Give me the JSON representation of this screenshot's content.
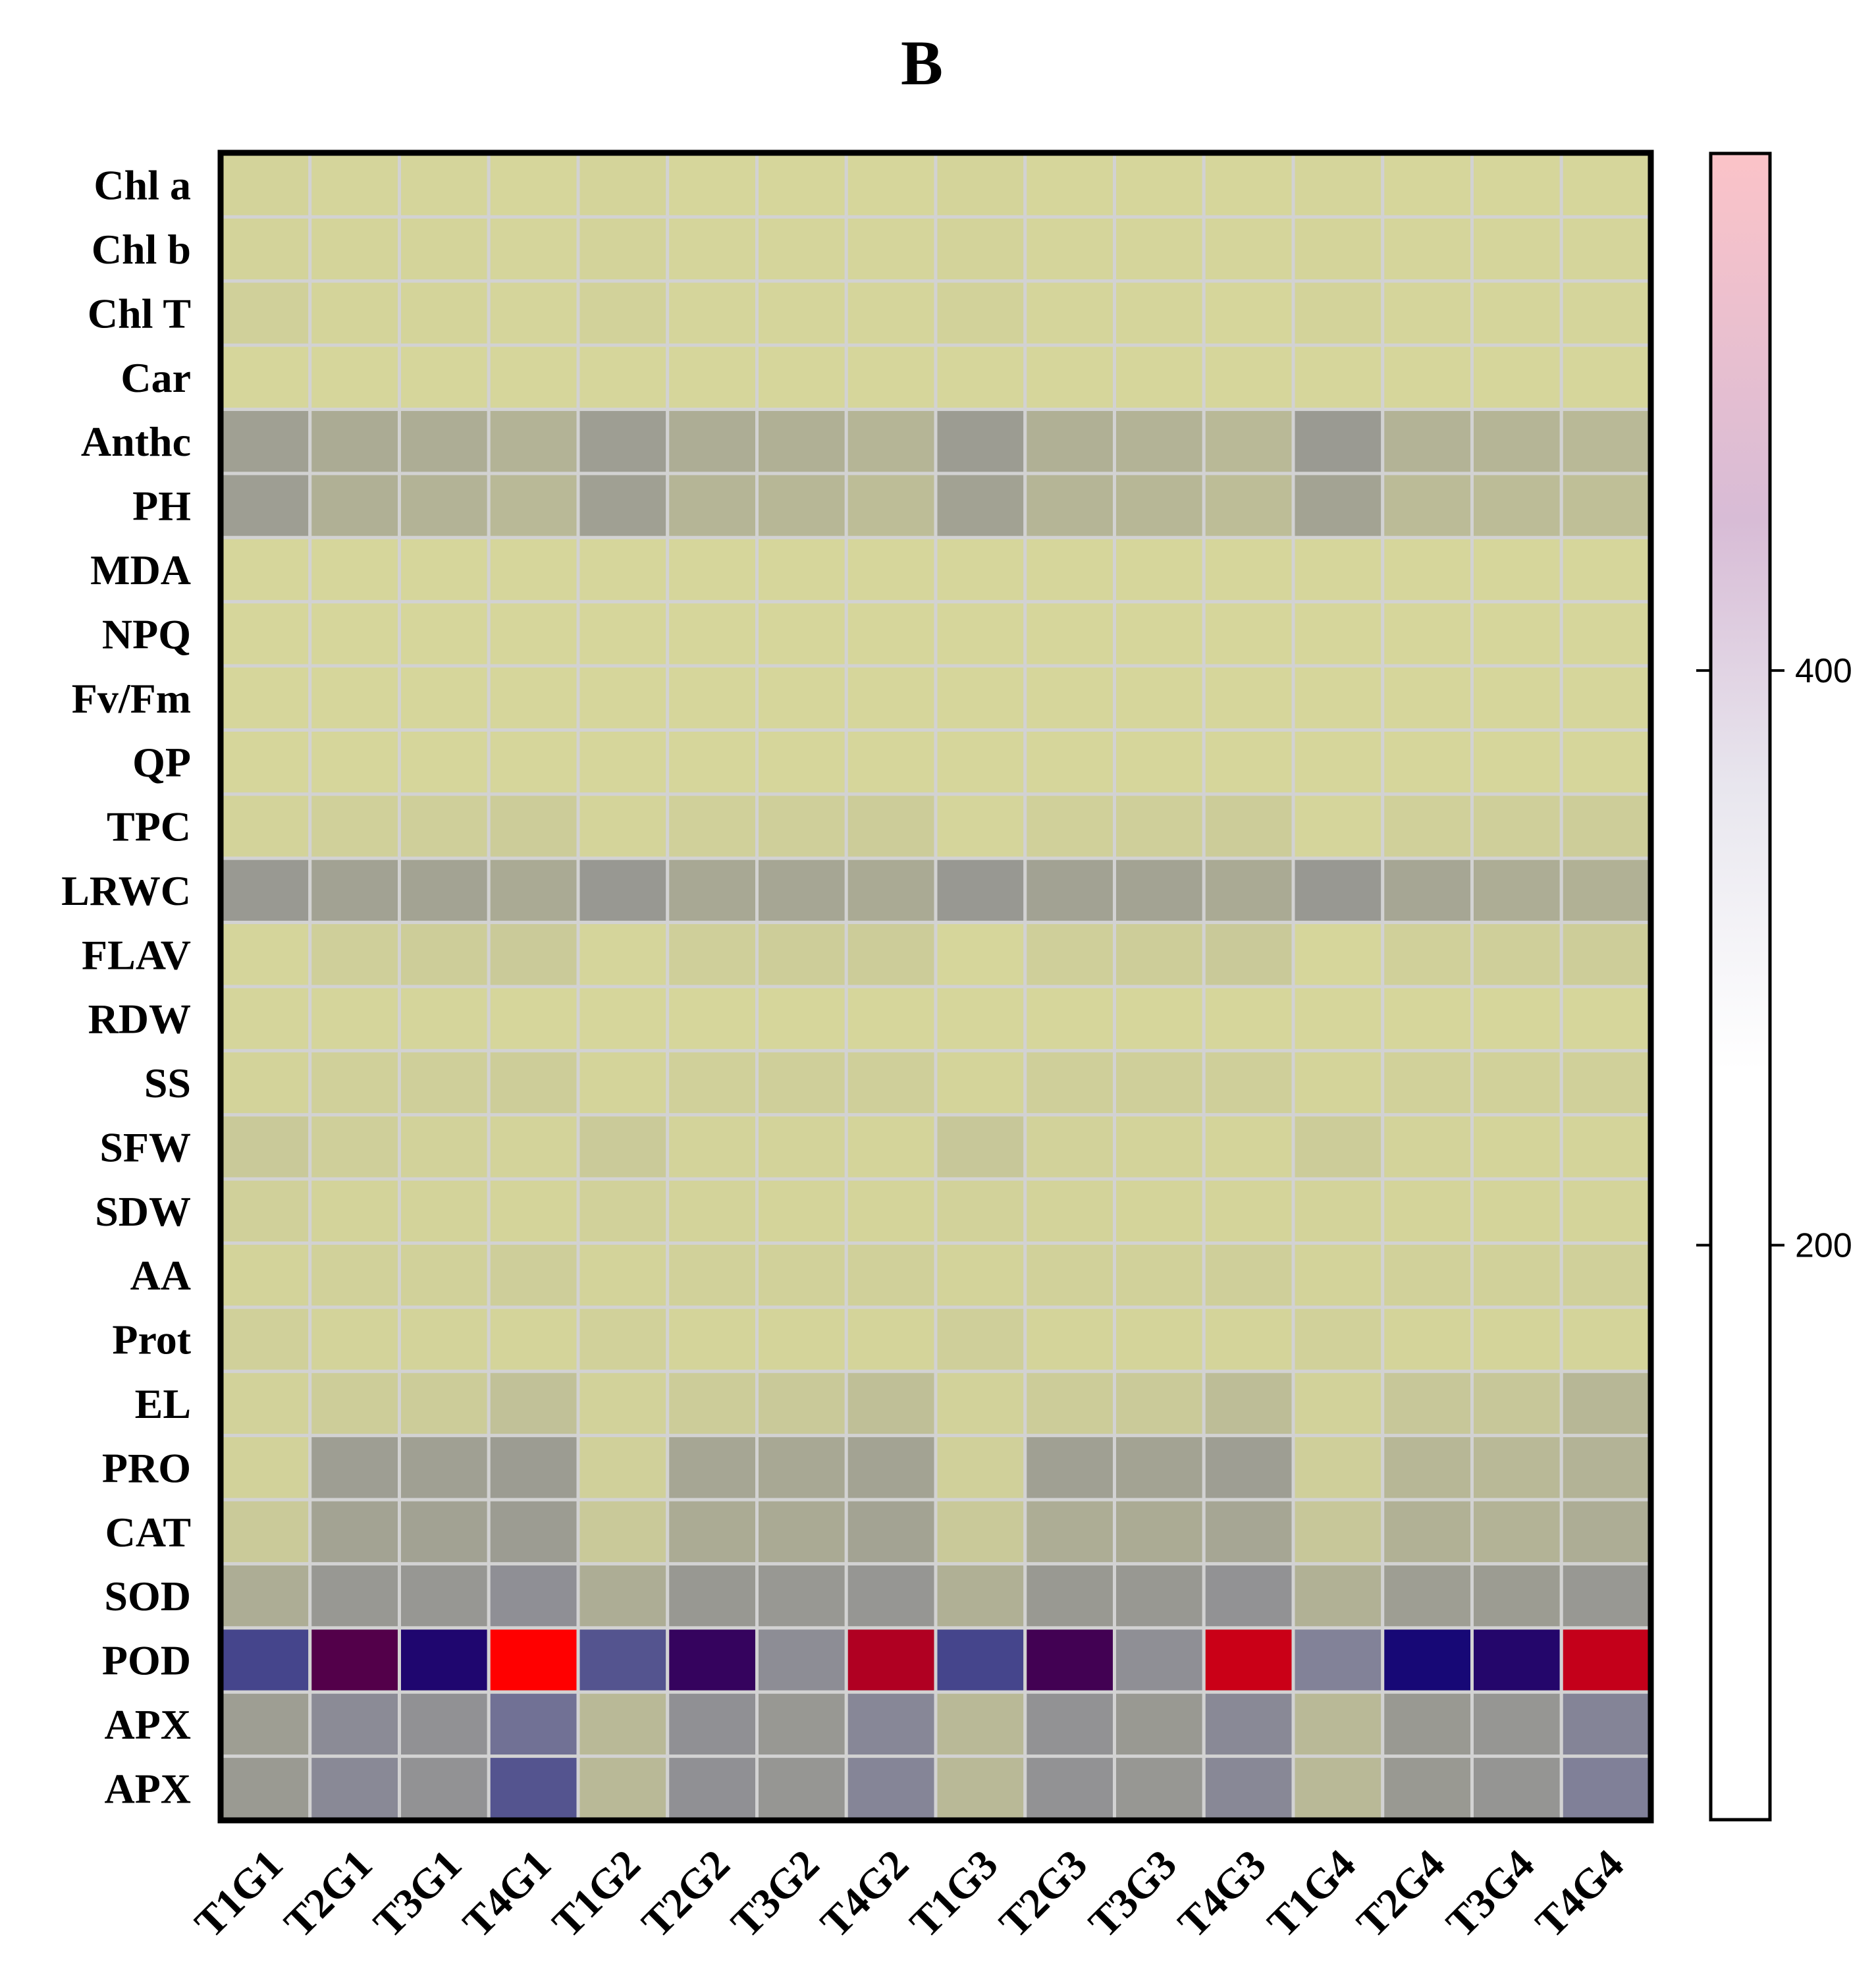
{
  "chart_data": {
    "type": "heatmap",
    "title": "B",
    "rows": [
      "Chl a",
      "Chl b",
      "Chl T",
      "Car",
      "Anthc",
      "PH",
      "MDA",
      "NPQ",
      "Fv/Fm",
      "QP",
      "TPC",
      "LRWC",
      "FLAV",
      "RDW",
      "SS",
      "SFW",
      "SDW",
      "AA",
      "Prot",
      "EL",
      "PRO",
      "CAT",
      "SOD",
      "POD",
      "APX",
      "APX"
    ],
    "columns": [
      "T1G1",
      "T2G1",
      "T3G1",
      "T4G1",
      "T1G2",
      "T2G2",
      "T3G2",
      "T4G2",
      "T1G3",
      "T2G3",
      "T3G3",
      "T4G3",
      "T1G4",
      "T2G4",
      "T3G4",
      "T4G4"
    ],
    "values": [
      [
        6,
        4,
        4,
        3,
        5,
        3,
        3,
        3,
        5,
        3,
        3,
        3,
        4,
        3,
        3,
        3
      ],
      [
        7,
        5,
        5,
        4,
        6,
        4,
        4,
        4,
        6,
        4,
        4,
        4,
        5,
        4,
        4,
        4
      ],
      [
        10,
        5,
        5,
        4,
        8,
        4,
        4,
        4,
        8,
        4,
        4,
        3,
        7,
        4,
        4,
        4
      ],
      [
        3,
        2,
        2,
        2,
        2,
        2,
        2,
        2,
        2,
        2,
        2,
        2,
        2,
        2,
        2,
        2
      ],
      [
        72,
        58,
        56,
        48,
        75,
        55,
        52,
        45,
        78,
        52,
        48,
        40,
        80,
        48,
        45,
        40
      ],
      [
        75,
        52,
        48,
        40,
        72,
        45,
        42,
        35,
        70,
        45,
        42,
        35,
        68,
        38,
        36,
        32
      ],
      [
        2,
        2,
        2,
        2,
        2,
        2,
        2,
        2,
        2,
        2,
        2,
        2,
        2,
        2,
        2,
        2
      ],
      [
        2,
        2,
        2,
        2,
        2,
        2,
        2,
        2,
        2,
        2,
        2,
        2,
        2,
        2,
        2,
        2
      ],
      [
        3,
        3,
        3,
        3,
        3,
        3,
        3,
        3,
        3,
        3,
        3,
        3,
        3,
        3,
        3,
        3
      ],
      [
        3,
        3,
        3,
        3,
        3,
        3,
        3,
        3,
        3,
        3,
        3,
        3,
        3,
        3,
        3,
        3
      ],
      [
        6,
        10,
        12,
        16,
        5,
        10,
        12,
        15,
        4,
        10,
        12,
        15,
        4,
        10,
        12,
        14
      ],
      [
        85,
        70,
        68,
        60,
        88,
        62,
        65,
        60,
        88,
        70,
        68,
        60,
        88,
        65,
        55,
        50
      ],
      [
        4,
        12,
        14,
        18,
        4,
        12,
        14,
        16,
        3,
        12,
        14,
        20,
        3,
        10,
        11,
        14
      ],
      [
        4,
        4,
        4,
        3,
        3,
        3,
        3,
        3,
        3,
        3,
        3,
        3,
        3,
        3,
        3,
        3
      ],
      [
        6,
        10,
        12,
        14,
        5,
        10,
        11,
        12,
        5,
        11,
        11,
        11,
        5,
        9,
        9,
        10
      ],
      [
        20,
        12,
        8,
        6,
        18,
        7,
        6,
        5,
        22,
        8,
        6,
        5,
        15,
        6,
        5,
        5
      ],
      [
        10,
        7,
        6,
        5,
        9,
        6,
        5,
        5,
        8,
        6,
        5,
        5,
        7,
        5,
        5,
        5
      ],
      [
        6,
        9,
        9,
        13,
        6,
        9,
        9,
        10,
        6,
        9,
        9,
        12,
        6,
        9,
        9,
        10
      ],
      [
        10,
        6,
        6,
        5,
        9,
        5,
        5,
        5,
        12,
        5,
        5,
        5,
        9,
        5,
        5,
        5
      ],
      [
        8,
        14,
        15,
        30,
        8,
        16,
        20,
        32,
        8,
        15,
        18,
        35,
        8,
        22,
        22,
        42
      ],
      [
        8,
        75,
        72,
        78,
        10,
        65,
        62,
        68,
        10,
        72,
        68,
        75,
        12,
        42,
        40,
        48
      ],
      [
        18,
        68,
        70,
        78,
        20,
        58,
        60,
        68,
        20,
        55,
        58,
        65,
        22,
        50,
        48,
        55
      ],
      [
        55,
        90,
        92,
        130,
        55,
        88,
        90,
        100,
        52,
        85,
        88,
        115,
        50,
        75,
        78,
        90
      ],
      [
        240,
        430,
        330,
        560,
        230,
        380,
        140,
        500,
        240,
        410,
        130,
        520,
        190,
        310,
        340,
        515
      ],
      [
        75,
        150,
        120,
        210,
        40,
        125,
        90,
        170,
        40,
        115,
        85,
        160,
        40,
        85,
        100,
        180
      ],
      [
        80,
        160,
        115,
        230,
        40,
        125,
        100,
        175,
        40,
        115,
        95,
        165,
        40,
        85,
        105,
        200
      ]
    ],
    "colorbar": {
      "ticks": [
        200,
        400
      ],
      "range": [
        0,
        580
      ]
    },
    "color_stops": [
      "#d8d89b",
      "#9a9a92",
      "#808098",
      "#0a0a80",
      "#460050",
      "#ff0000"
    ]
  }
}
